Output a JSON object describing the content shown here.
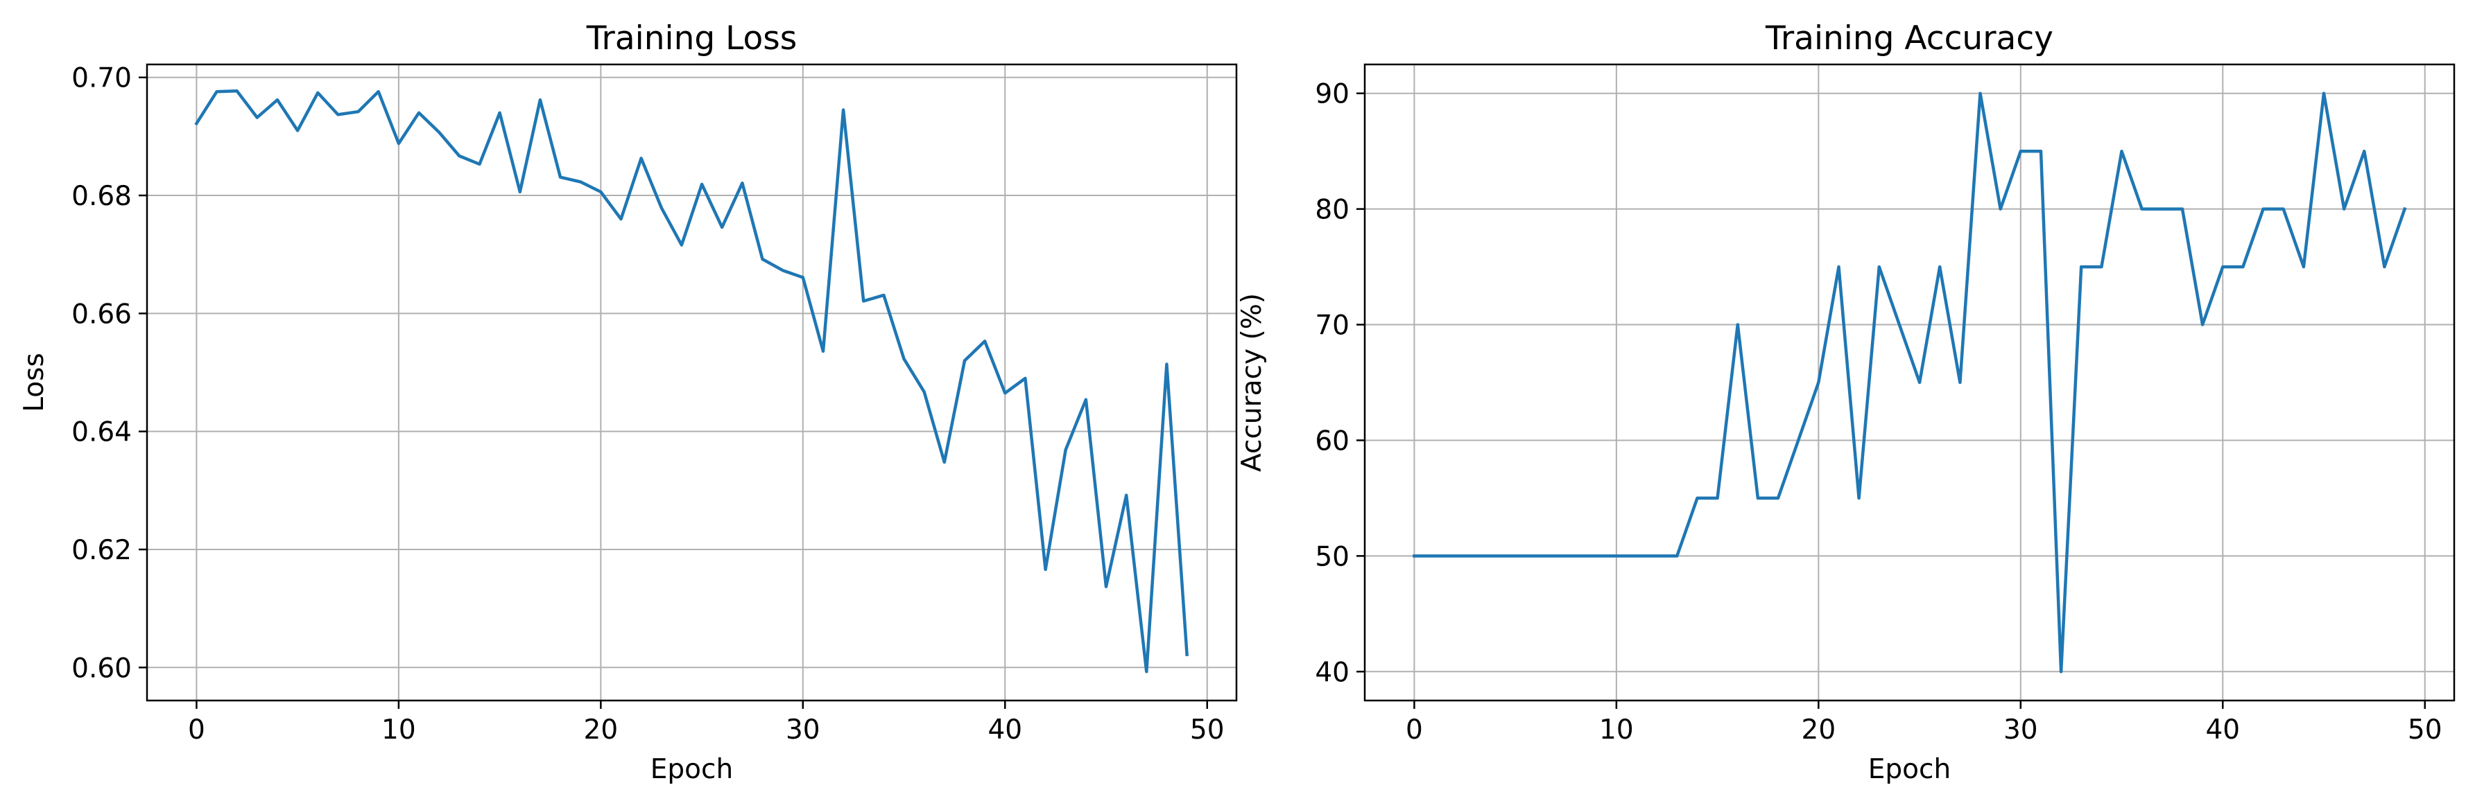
{
  "chart_data": [
    {
      "type": "line",
      "title": "Training Loss",
      "xlabel": "Epoch",
      "ylabel": "Loss",
      "xlim": [
        -2.45,
        51.45
      ],
      "ylim": [
        0.5944,
        0.7022
      ],
      "x_ticks": [
        0,
        10,
        20,
        30,
        40,
        50
      ],
      "y_ticks": [
        0.6,
        0.62,
        0.64,
        0.66,
        0.68,
        0.7
      ],
      "y_tick_labels": [
        "0.60",
        "0.62",
        "0.64",
        "0.66",
        "0.68",
        "0.70"
      ],
      "grid": true,
      "color": "#1f77b4",
      "series": [
        {
          "x": [
            0,
            1,
            2,
            3,
            4,
            5,
            6,
            7,
            8,
            9,
            10,
            11,
            12,
            13,
            14,
            15,
            16,
            17,
            18,
            19,
            20,
            21,
            22,
            23,
            24,
            25,
            26,
            27,
            28,
            29,
            30,
            31,
            32,
            33,
            34,
            35,
            36,
            37,
            38,
            39,
            40,
            41,
            42,
            43,
            44,
            45,
            46,
            47,
            48,
            49
          ],
          "values": [
            0.6922,
            0.6976,
            0.6977,
            0.6932,
            0.6962,
            0.691,
            0.6974,
            0.6937,
            0.6942,
            0.6976,
            0.6888,
            0.694,
            0.6907,
            0.6867,
            0.6853,
            0.694,
            0.6806,
            0.6962,
            0.6831,
            0.6823,
            0.6806,
            0.676,
            0.6863,
            0.6779,
            0.6716,
            0.6819,
            0.6746,
            0.6821,
            0.6692,
            0.6673,
            0.6661,
            0.6536,
            0.6945,
            0.6621,
            0.6631,
            0.6523,
            0.6467,
            0.6348,
            0.652,
            0.6553,
            0.6465,
            0.649,
            0.6166,
            0.6369,
            0.6454,
            0.6137,
            0.6292,
            0.5993,
            0.6514,
            0.6022
          ]
        }
      ]
    },
    {
      "type": "line",
      "title": "Training Accuracy",
      "xlabel": "Epoch",
      "ylabel": "Accuracy (%)",
      "xlim": [
        -2.45,
        51.45
      ],
      "ylim": [
        37.5,
        92.5
      ],
      "x_ticks": [
        0,
        10,
        20,
        30,
        40,
        50
      ],
      "y_ticks": [
        40,
        50,
        60,
        70,
        80,
        90
      ],
      "y_tick_labels": [
        "40",
        "50",
        "60",
        "70",
        "80",
        "90"
      ],
      "grid": true,
      "color": "#1f77b4",
      "series": [
        {
          "x": [
            0,
            1,
            2,
            3,
            4,
            5,
            6,
            7,
            8,
            9,
            10,
            11,
            12,
            13,
            14,
            15,
            16,
            17,
            18,
            19,
            20,
            21,
            22,
            23,
            24,
            25,
            26,
            27,
            28,
            29,
            30,
            31,
            32,
            33,
            34,
            35,
            36,
            37,
            38,
            39,
            40,
            41,
            42,
            43,
            44,
            45,
            46,
            47,
            48,
            49
          ],
          "values": [
            50,
            50,
            50,
            50,
            50,
            50,
            50,
            50,
            50,
            50,
            50,
            50,
            50,
            50,
            55,
            55,
            70,
            55,
            55,
            60,
            65,
            75,
            55,
            75,
            70,
            65,
            75,
            65,
            90,
            80,
            85,
            85,
            40,
            75,
            75,
            85,
            80,
            80,
            80,
            70,
            75,
            75,
            80,
            80,
            75,
            90,
            80,
            85,
            75,
            80
          ]
        }
      ]
    }
  ]
}
